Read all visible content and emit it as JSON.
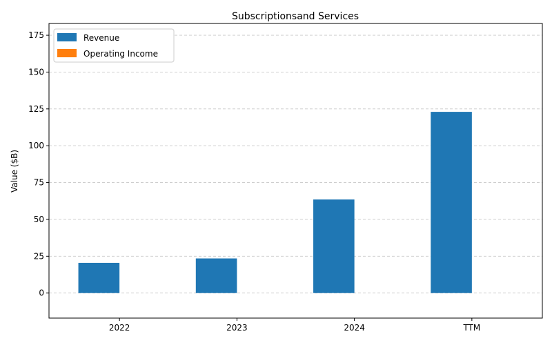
{
  "chart_data": {
    "type": "bar",
    "title": "Subscriptionsand Services",
    "xlabel": "",
    "ylabel": "Value ($B)",
    "categories": [
      "2022",
      "2023",
      "2024",
      "TTM"
    ],
    "series": [
      {
        "name": "Revenue",
        "color": "#1f77b4",
        "values": [
          20.5,
          23.5,
          63.5,
          123.0
        ]
      },
      {
        "name": "Operating Income",
        "color": "#ff7f0e",
        "values": [
          0,
          0,
          0,
          0
        ]
      }
    ],
    "ylim": [
      -17,
      183
    ],
    "yticks": [
      0,
      25,
      50,
      75,
      100,
      125,
      150,
      175
    ],
    "grid": true,
    "legend_position": "top-left"
  }
}
